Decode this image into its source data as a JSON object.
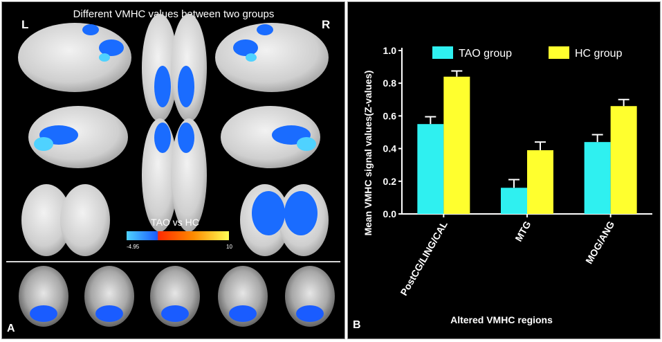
{
  "panel_a": {
    "title": "Different VMHC values between two groups",
    "left_label": "L",
    "right_label": "R",
    "colorbar": {
      "label": "TAO vs HC",
      "min_label": "-4.95",
      "max_label": "10",
      "neg_colors": [
        "#4fd2ff",
        "#1a5cff"
      ],
      "pos_colors": [
        "#ff2a00",
        "#ff8a00",
        "#ffff55"
      ]
    },
    "panel_letter": "A"
  },
  "panel_b": {
    "panel_letter": "B"
  },
  "chart_data": {
    "type": "bar",
    "categories": [
      "PostCG/LING/CAL",
      "MTG",
      "MOG/ANG"
    ],
    "series": [
      {
        "name": "TAO group",
        "values": [
          0.55,
          0.16,
          0.44
        ],
        "errors": [
          0.045,
          0.05,
          0.045
        ],
        "color": "#2ff0f0"
      },
      {
        "name": "HC group",
        "values": [
          0.84,
          0.39,
          0.66
        ],
        "errors": [
          0.035,
          0.05,
          0.04
        ],
        "color": "#ffff2e"
      }
    ],
    "title": "",
    "xlabel": "Altered VMHC regions",
    "ylabel": "Mean VMHC signal values(Z-values)",
    "ylim": [
      0,
      1.0
    ],
    "yticks": [
      "0.0",
      "0.2",
      "0.4",
      "0.6",
      "0.8",
      "1.0"
    ],
    "legend_position": "top"
  }
}
